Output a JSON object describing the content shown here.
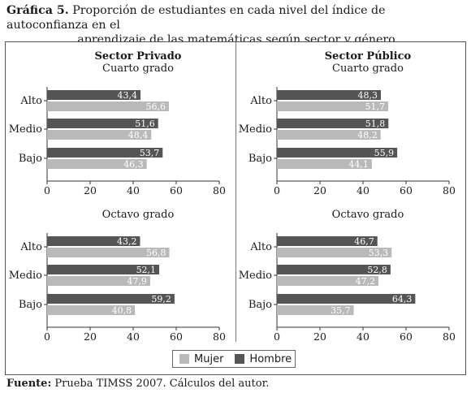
{
  "figure": {
    "title_label": "Gráfica 5.",
    "title_line1": "Proporción de estudiantes en cada nivel del índice de autoconfianza en el",
    "title_line2": "aprendizaje de las matemáticas según sector y género",
    "source_label": "Fuente:",
    "source_text": "Prueba TIMSS 2007. Cálculos del autor."
  },
  "legend": {
    "mujer_label": "Mujer",
    "hombre_label": "Hombre"
  },
  "colors": {
    "hombre": "#555555",
    "mujer": "#b9b9b9"
  },
  "chart_data": [
    {
      "type": "bar",
      "orientation": "horizontal",
      "sector": "Sector Privado",
      "grade": "Cuarto grado",
      "categories": [
        "Alto",
        "Medio",
        "Bajo"
      ],
      "series": [
        {
          "name": "Hombre",
          "values": [
            43.4,
            51.6,
            53.7
          ],
          "labels": [
            "43,4",
            "51,6",
            "53,7"
          ]
        },
        {
          "name": "Mujer",
          "values": [
            56.6,
            48.4,
            46.3
          ],
          "labels": [
            "56,6",
            "48,4",
            "46,3"
          ]
        }
      ],
      "xlim": [
        0,
        80
      ],
      "xticks": [
        0,
        20,
        40,
        60,
        80
      ]
    },
    {
      "type": "bar",
      "orientation": "horizontal",
      "sector": "Sector Público",
      "grade": "Cuarto grado",
      "categories": [
        "Alto",
        "Medio",
        "Bajo"
      ],
      "series": [
        {
          "name": "Hombre",
          "values": [
            48.3,
            51.8,
            55.9
          ],
          "labels": [
            "48,3",
            "51,8",
            "55,9"
          ]
        },
        {
          "name": "Mujer",
          "values": [
            51.7,
            48.2,
            44.1
          ],
          "labels": [
            "51,7",
            "48,2",
            "44,1"
          ]
        }
      ],
      "xlim": [
        0,
        80
      ],
      "xticks": [
        0,
        20,
        40,
        60,
        80
      ]
    },
    {
      "type": "bar",
      "orientation": "horizontal",
      "sector": "",
      "grade": "Octavo grado",
      "categories": [
        "Alto",
        "Medio",
        "Bajo"
      ],
      "series": [
        {
          "name": "Hombre",
          "values": [
            43.2,
            52.1,
            59.2
          ],
          "labels": [
            "43,2",
            "52,1",
            "59,2"
          ]
        },
        {
          "name": "Mujer",
          "values": [
            56.8,
            47.9,
            40.8
          ],
          "labels": [
            "56,8",
            "47,9",
            "40,8"
          ]
        }
      ],
      "xlim": [
        0,
        80
      ],
      "xticks": [
        0,
        20,
        40,
        60,
        80
      ]
    },
    {
      "type": "bar",
      "orientation": "horizontal",
      "sector": "",
      "grade": "Octavo grado",
      "categories": [
        "Alto",
        "Medio",
        "Bajo"
      ],
      "series": [
        {
          "name": "Hombre",
          "values": [
            46.7,
            52.8,
            64.3
          ],
          "labels": [
            "46,7",
            "52,8",
            "64,3"
          ]
        },
        {
          "name": "Mujer",
          "values": [
            53.3,
            47.2,
            35.7
          ],
          "labels": [
            "53,3",
            "47,2",
            "35,7"
          ]
        }
      ],
      "xlim": [
        0,
        80
      ],
      "xticks": [
        0,
        20,
        40,
        60,
        80
      ]
    }
  ]
}
